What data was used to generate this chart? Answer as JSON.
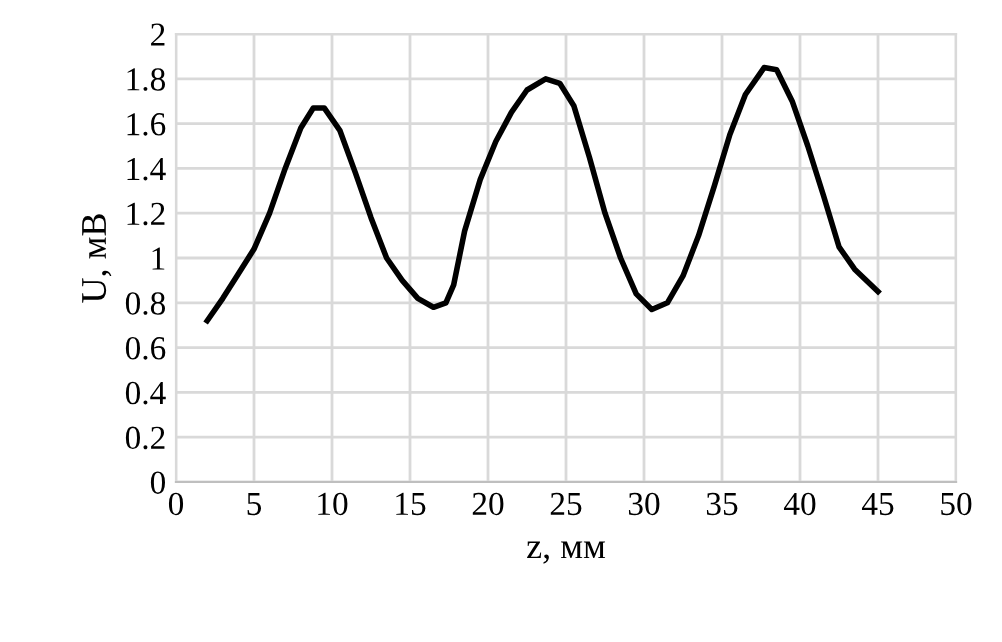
{
  "chart_data": {
    "type": "line",
    "xlabel": "z, мм",
    "ylabel": "U, мВ",
    "series": [
      {
        "color": "#000000",
        "x": [
          2,
          3,
          4,
          5,
          6,
          7,
          8,
          8.8,
          9.5,
          10.5,
          11.5,
          12.5,
          13.5,
          14.5,
          15.5,
          16.5,
          17.3,
          17.8,
          18.5,
          19.5,
          20.5,
          21.5,
          22.5,
          23.7,
          24.6,
          25.5,
          26.5,
          27.5,
          28.5,
          29.5,
          30.5,
          31.5,
          32.5,
          33.5,
          34.5,
          35.5,
          36.5,
          37.7,
          38.5,
          39.5,
          40.5,
          41.5,
          42.5,
          43.5,
          45
        ],
        "values": [
          0.72,
          0.82,
          0.93,
          1.04,
          1.2,
          1.4,
          1.58,
          1.67,
          1.67,
          1.57,
          1.38,
          1.18,
          1.0,
          0.9,
          0.82,
          0.78,
          0.8,
          0.88,
          1.12,
          1.35,
          1.52,
          1.65,
          1.75,
          1.8,
          1.78,
          1.68,
          1.45,
          1.2,
          1.0,
          0.84,
          0.77,
          0.8,
          0.92,
          1.1,
          1.32,
          1.55,
          1.73,
          1.85,
          1.84,
          1.7,
          1.5,
          1.28,
          1.05,
          0.95,
          0.85
        ]
      }
    ],
    "xlim": [
      0,
      50
    ],
    "xticks": [
      0,
      5,
      10,
      15,
      20,
      25,
      30,
      35,
      40,
      45,
      50
    ],
    "ylim": [
      0,
      2
    ],
    "yticks": [
      0,
      {
        "value": 0.2,
        "label": "0.2"
      },
      {
        "value": 0.4,
        "label": "0.4"
      },
      {
        "value": 0.6,
        "label": "0.6"
      },
      {
        "value": 0.8,
        "label": "0.8"
      },
      1,
      {
        "value": 1.2,
        "label": "1.2"
      },
      {
        "value": 1.4,
        "label": "1.4"
      },
      {
        "value": 1.6,
        "label": "1.6"
      },
      {
        "value": 1.8,
        "label": "1.8"
      },
      2
    ],
    "grid": true,
    "marker": "none",
    "line_style": "solid"
  }
}
